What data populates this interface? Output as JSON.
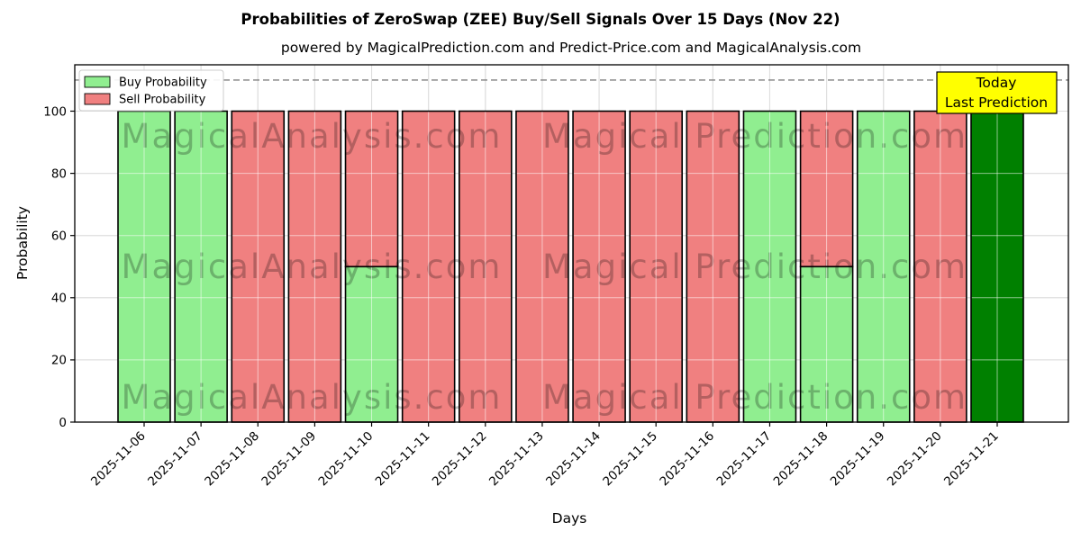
{
  "header": {
    "title": "Probabilities of ZeroSwap (ZEE) Buy/Sell Signals Over 15 Days (Nov 22)",
    "subtitle": "powered by MagicalPrediction.com and Predict-Price.com and MagicalAnalysis.com"
  },
  "legend": {
    "items": [
      {
        "label": "Buy Probability",
        "color": "#90EE90"
      },
      {
        "label": "Sell Probability",
        "color": "#F08080"
      }
    ]
  },
  "annotation_box": {
    "lines": [
      "Today",
      "Last Prediction"
    ],
    "bg": "#FFFF00",
    "border": "#000000"
  },
  "watermarks": {
    "texts": [
      "MagicalAnalysis.com",
      "Magical Prediction.com"
    ],
    "color": "#9e9e9e"
  },
  "colors": {
    "grid": "#b8b8b8",
    "grid_over_bars": "#ffffff",
    "dashed_line": "#808080",
    "bar_edge": "#000000",
    "today_bar": "#008000"
  },
  "chart_data": {
    "type": "bar",
    "stacked": true,
    "title": "Probabilities of ZeroSwap (ZEE) Buy/Sell Signals Over 15 Days (Nov 22)",
    "xlabel": "Days",
    "ylabel": "Probability",
    "ylim": [
      0,
      115
    ],
    "yticks": [
      0,
      20,
      40,
      60,
      80,
      100
    ],
    "grid": true,
    "legend_position": "upper left",
    "dashed_line_y": 110,
    "categories": [
      "2025-11-06",
      "2025-11-07",
      "2025-11-08",
      "2025-11-09",
      "2025-11-10",
      "2025-11-11",
      "2025-11-12",
      "2025-11-13",
      "2025-11-14",
      "2025-11-15",
      "2025-11-16",
      "2025-11-17",
      "2025-11-18",
      "2025-11-19",
      "2025-11-20",
      "2025-11-21"
    ],
    "series": [
      {
        "name": "Buy Probability",
        "color": "#90EE90",
        "values": [
          100,
          100,
          0,
          0,
          50,
          0,
          0,
          0,
          0,
          0,
          0,
          100,
          50,
          100,
          0,
          0
        ]
      },
      {
        "name": "Sell Probability",
        "color": "#F08080",
        "values": [
          0,
          0,
          100,
          100,
          50,
          100,
          100,
          100,
          100,
          100,
          100,
          0,
          50,
          0,
          100,
          0
        ]
      },
      {
        "name": "Today Last Prediction",
        "color": "#008000",
        "values": [
          0,
          0,
          0,
          0,
          0,
          0,
          0,
          0,
          0,
          0,
          0,
          0,
          0,
          0,
          0,
          100
        ]
      }
    ]
  }
}
